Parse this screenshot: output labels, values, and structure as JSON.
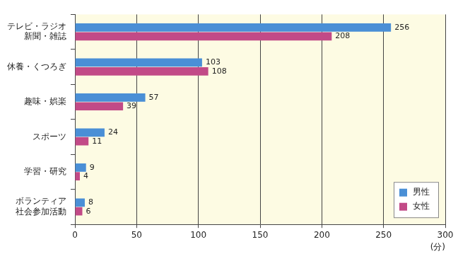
{
  "chart_data": {
    "type": "bar",
    "orientation": "horizontal",
    "categories": [
      "テレビ・ラジオ\n新聞・雑誌",
      "休養・くつろぎ",
      "趣味・娯楽",
      "スポーツ",
      "学習・研究",
      "ボランティア\n社会参加活動"
    ],
    "series": [
      {
        "name": "男性",
        "color": "#4a8fd6",
        "values": [
          256,
          103,
          57,
          24,
          9,
          8
        ]
      },
      {
        "name": "女性",
        "color": "#c24a87",
        "values": [
          208,
          108,
          39,
          11,
          4,
          6
        ]
      }
    ],
    "x_label": "(分)",
    "xlim": [
      0,
      300
    ],
    "xticks": [
      0,
      50,
      100,
      150,
      200,
      250,
      300
    ],
    "grid": true,
    "legend": "lower right",
    "data_labels": true
  }
}
